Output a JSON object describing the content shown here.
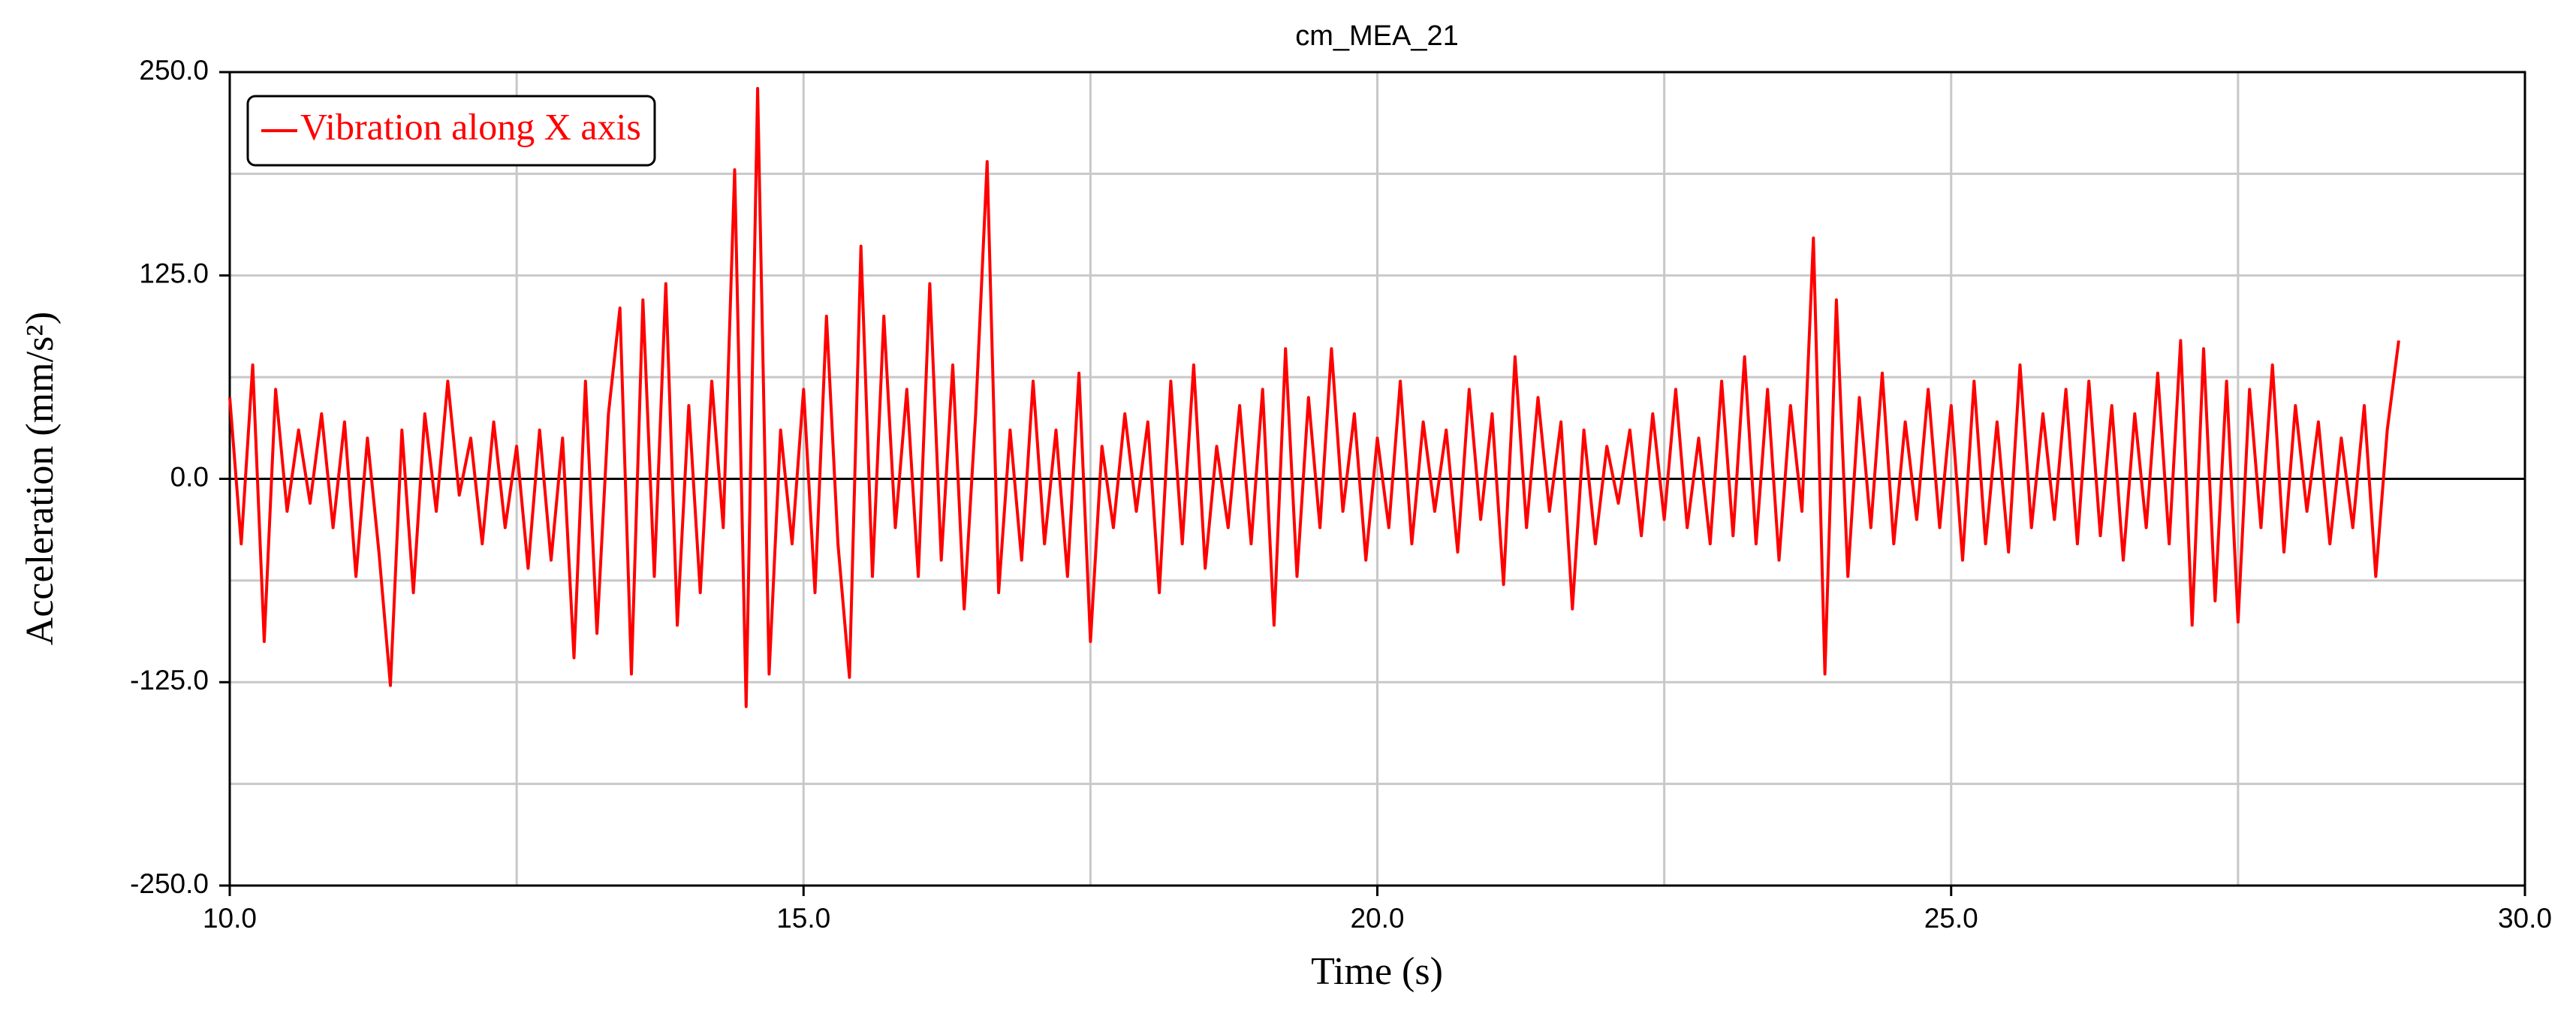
{
  "chart_data": {
    "type": "line",
    "title": "cm_MEA_21",
    "x_label": "Time (s)",
    "y_label": "Acceleration (mm/s²)",
    "xlim": [
      10,
      30
    ],
    "ylim": [
      -250,
      250
    ],
    "xticks": [
      {
        "value": 10,
        "label": "10.0"
      },
      {
        "value": 15,
        "label": "15.0"
      },
      {
        "value": 20,
        "label": "20.0"
      },
      {
        "value": 25,
        "label": "25.0"
      },
      {
        "value": 30,
        "label": "30.0"
      }
    ],
    "xminor": [
      12.5,
      17.5,
      22.5,
      27.5
    ],
    "yticks": [
      {
        "value": -250,
        "label": "-250.0"
      },
      {
        "value": -125,
        "label": "-125.0"
      },
      {
        "value": 0,
        "label": "0.0"
      },
      {
        "value": 125,
        "label": "125.0"
      },
      {
        "value": 250,
        "label": "250.0"
      }
    ],
    "yminor": [
      -187.5,
      -62.5,
      62.5,
      187.5
    ],
    "grid": true,
    "legend": "upper left",
    "x": [
      10.0,
      10.1,
      10.2,
      10.3,
      10.4,
      10.5,
      10.6,
      10.7,
      10.8,
      10.9,
      11.0,
      11.1,
      11.2,
      11.3,
      11.4,
      11.5,
      11.6,
      11.7,
      11.8,
      11.9,
      12.0,
      12.1,
      12.2,
      12.3,
      12.4,
      12.5,
      12.6,
      12.7,
      12.8,
      12.9,
      13.0,
      13.1,
      13.2,
      13.3,
      13.4,
      13.5,
      13.6,
      13.7,
      13.8,
      13.9,
      14.0,
      14.1,
      14.2,
      14.3,
      14.4,
      14.5,
      14.6,
      14.7,
      14.8,
      14.9,
      15.0,
      15.1,
      15.2,
      15.3,
      15.4,
      15.5,
      15.6,
      15.7,
      15.8,
      15.9,
      16.0,
      16.1,
      16.2,
      16.3,
      16.4,
      16.5,
      16.6,
      16.7,
      16.8,
      16.9,
      17.0,
      17.1,
      17.2,
      17.3,
      17.4,
      17.5,
      17.6,
      17.7,
      17.8,
      17.9,
      18.0,
      18.1,
      18.2,
      18.3,
      18.4,
      18.5,
      18.6,
      18.7,
      18.8,
      18.9,
      19.0,
      19.1,
      19.2,
      19.3,
      19.4,
      19.5,
      19.6,
      19.7,
      19.8,
      19.9,
      20.0,
      20.1,
      20.2,
      20.3,
      20.4,
      20.5,
      20.6,
      20.7,
      20.8,
      20.9,
      21.0,
      21.1,
      21.2,
      21.3,
      21.4,
      21.5,
      21.6,
      21.7,
      21.8,
      21.9,
      22.0,
      22.1,
      22.2,
      22.3,
      22.4,
      22.5,
      22.6,
      22.7,
      22.8,
      22.9,
      23.0,
      23.1,
      23.2,
      23.3,
      23.4,
      23.5,
      23.6,
      23.7,
      23.8,
      23.9,
      24.0,
      24.1,
      24.2,
      24.3,
      24.4,
      24.5,
      24.6,
      24.7,
      24.8,
      24.9,
      25.0,
      25.1,
      25.2,
      25.3,
      25.4,
      25.5,
      25.6,
      25.7,
      25.8,
      25.9,
      26.0,
      26.1,
      26.2,
      26.3,
      26.4,
      26.5,
      26.6,
      26.7,
      26.8,
      26.9,
      27.0,
      27.1,
      27.2,
      27.3,
      27.4,
      27.5,
      27.6,
      27.7,
      27.8,
      27.9,
      28.0,
      28.1,
      28.2,
      28.3,
      28.4,
      28.5,
      28.6,
      28.7,
      28.8,
      28.9
    ],
    "series": [
      {
        "name": "Vibration along X axis",
        "color": "#ff0000",
        "values": [
          50,
          -40,
          70,
          -100,
          55,
          -20,
          30,
          -15,
          40,
          -30,
          35,
          -60,
          25,
          -45,
          -127,
          30,
          -70,
          40,
          -20,
          60,
          -10,
          25,
          -40,
          35,
          -30,
          20,
          -55,
          30,
          -50,
          25,
          -110,
          60,
          -95,
          40,
          105,
          -120,
          110,
          -60,
          120,
          -90,
          45,
          -70,
          60,
          -30,
          190,
          -140,
          240,
          -120,
          30,
          -40,
          55,
          -70,
          100,
          -40,
          -122,
          143,
          -60,
          100,
          -30,
          55,
          -60,
          120,
          -50,
          70,
          -80,
          40,
          195,
          -70,
          30,
          -50,
          60,
          -40,
          30,
          -60,
          65,
          -100,
          20,
          -30,
          40,
          -20,
          35,
          -70,
          60,
          -40,
          70,
          -55,
          20,
          -30,
          45,
          -40,
          55,
          -90,
          80,
          -60,
          50,
          -30,
          80,
          -20,
          40,
          -50,
          25,
          -30,
          60,
          -40,
          35,
          -20,
          30,
          -45,
          55,
          -25,
          40,
          -65,
          75,
          -30,
          50,
          -20,
          35,
          -80,
          30,
          -40,
          20,
          -15,
          30,
          -35,
          40,
          -25,
          55,
          -30,
          25,
          -40,
          60,
          -35,
          75,
          -40,
          55,
          -50,
          45,
          -20,
          148,
          -120,
          110,
          -60,
          50,
          -30,
          65,
          -40,
          35,
          -25,
          55,
          -30,
          45,
          -50,
          60,
          -40,
          35,
          -45,
          70,
          -30,
          40,
          -25,
          55,
          -40,
          60,
          -35,
          45,
          -50,
          40,
          -30,
          65,
          -40,
          85,
          -90,
          80,
          -75,
          60,
          -88,
          55,
          -30,
          70,
          -45,
          45,
          -20,
          35,
          -40,
          25,
          -30,
          45,
          -60,
          30,
          85
        ]
      }
    ]
  }
}
